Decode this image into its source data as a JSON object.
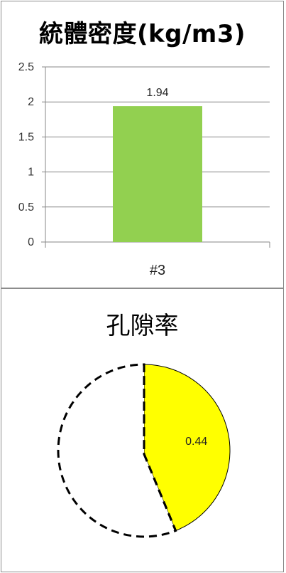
{
  "chart_data": [
    {
      "type": "bar",
      "title": "統體密度(kg/m3)",
      "categories": [
        "#3"
      ],
      "values": [
        1.94
      ],
      "data_labels": [
        "1.94"
      ],
      "ylim": [
        0,
        2.5
      ],
      "yticks": [
        0,
        0.5,
        1,
        1.5,
        2,
        2.5
      ],
      "ytick_labels": [
        "0",
        "0.5",
        "1",
        "1.5",
        "2",
        "2.5"
      ],
      "grid": true,
      "bar_color": "#92d050"
    },
    {
      "type": "pie",
      "title": "孔隙率",
      "slices": [
        {
          "value": 0.44,
          "label": "0.44",
          "color": "#ffff00"
        },
        {
          "value": 0.56,
          "label": "",
          "color": "#ffffff"
        }
      ]
    }
  ]
}
